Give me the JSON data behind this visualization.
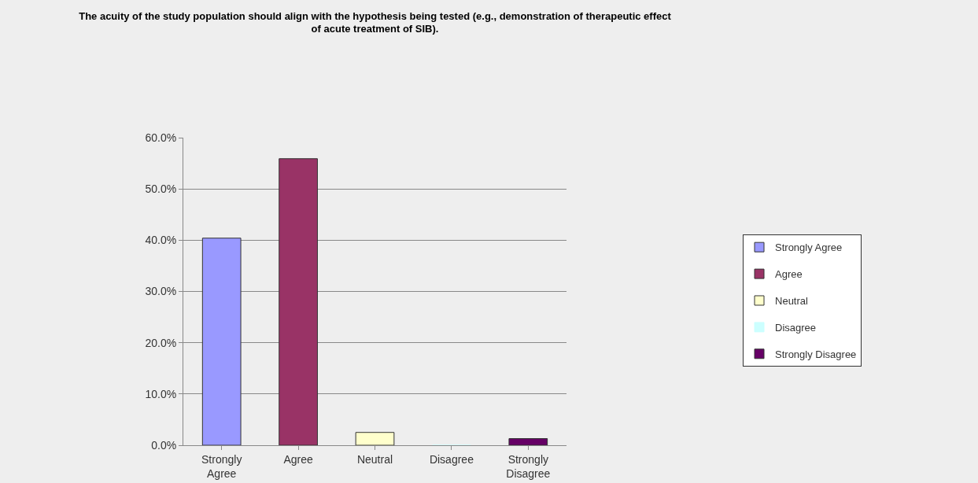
{
  "chart_data": {
    "type": "bar",
    "title": "The acuity of the study population should align with the hypothesis being tested (e.g., demonstration of therapeutic effect of acute treatment of SIB).",
    "categories": [
      "Strongly Agree",
      "Agree",
      "Neutral",
      "Disagree",
      "Strongly Disagree"
    ],
    "series": [
      {
        "name": "Strongly Agree",
        "color": "#9999ff",
        "values": [
          40.4,
          null,
          null,
          null,
          null
        ]
      },
      {
        "name": "Agree",
        "color": "#993366",
        "values": [
          null,
          55.9,
          null,
          null,
          null
        ]
      },
      {
        "name": "Neutral",
        "color": "#ffffcc",
        "values": [
          null,
          null,
          2.5,
          null,
          null
        ]
      },
      {
        "name": "Disagree",
        "color": "#ccffff",
        "values": [
          null,
          null,
          null,
          0,
          null
        ]
      },
      {
        "name": "Strongly Disagree",
        "color": "#660066",
        "values": [
          null,
          null,
          null,
          null,
          1.3
        ]
      }
    ],
    "ylim": [
      0,
      60
    ],
    "yticks": [
      {
        "value": 0,
        "label": "0.0%"
      },
      {
        "value": 10,
        "label": "10.0%"
      },
      {
        "value": 20,
        "label": "20.0%"
      },
      {
        "value": 30,
        "label": "30.0%"
      },
      {
        "value": 40,
        "label": "40.0%"
      },
      {
        "value": 50,
        "label": "50.0%"
      },
      {
        "value": 60,
        "label": "60.0%"
      }
    ],
    "grid": "y",
    "legend": "right"
  }
}
